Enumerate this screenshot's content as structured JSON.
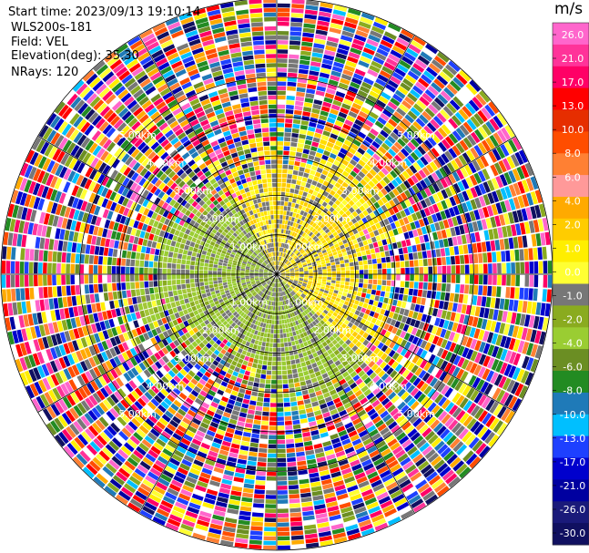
{
  "header": {
    "start_time": "Start time: 2023/09/13 19:10:14",
    "site": "WLS200s-181",
    "field": "Field: VEL",
    "elevation": "Elevation(deg): 35.30",
    "nrays": "NRays: 120"
  },
  "chart_data": {
    "type": "heatmap",
    "projection": "polar",
    "field": "VEL",
    "elevation_deg": 35.3,
    "n_rays": 120,
    "range_rings": [
      {
        "label": "1.00km",
        "value": 1.0
      },
      {
        "label": "2.00km",
        "value": 2.0
      },
      {
        "label": "3.00km",
        "value": 3.0
      },
      {
        "label": "4.00km",
        "value": 4.0
      },
      {
        "label": "5.00km",
        "value": 5.0
      }
    ],
    "max_range_km": 7.0,
    "grid": true,
    "colorbar": {
      "unit": "m/s",
      "ticks": [
        "26.0",
        "21.0",
        "17.0",
        "13.0",
        "10.0",
        "8.0",
        "6.0",
        "4.0",
        "2.0",
        "1.0",
        "0.0",
        "-1.0",
        "-2.0",
        "-4.0",
        "-6.0",
        "-8.0",
        "-10.0",
        "-13.0",
        "-17.0",
        "-21.0",
        "-26.0",
        "-30.0"
      ],
      "colors": [
        "#ff66cc",
        "#ff3399",
        "#ff0066",
        "#ff0000",
        "#e62e00",
        "#ff4d00",
        "#ff8033",
        "#ff9999",
        "#ffaa00",
        "#ffcc00",
        "#ffee00",
        "#ffff33",
        "#777777",
        "#8aab1f",
        "#9acd32",
        "#6b8e23",
        "#228b22",
        "#1f7ab8",
        "#00bfff",
        "#1e40ff",
        "#0000cd",
        "#0000a0",
        "#1a1a7a",
        "#101060"
      ]
    },
    "pattern": "yellow (positive) sector north-east, green (negative) south-west, grey near zero; noisy multicolor outer rings"
  }
}
